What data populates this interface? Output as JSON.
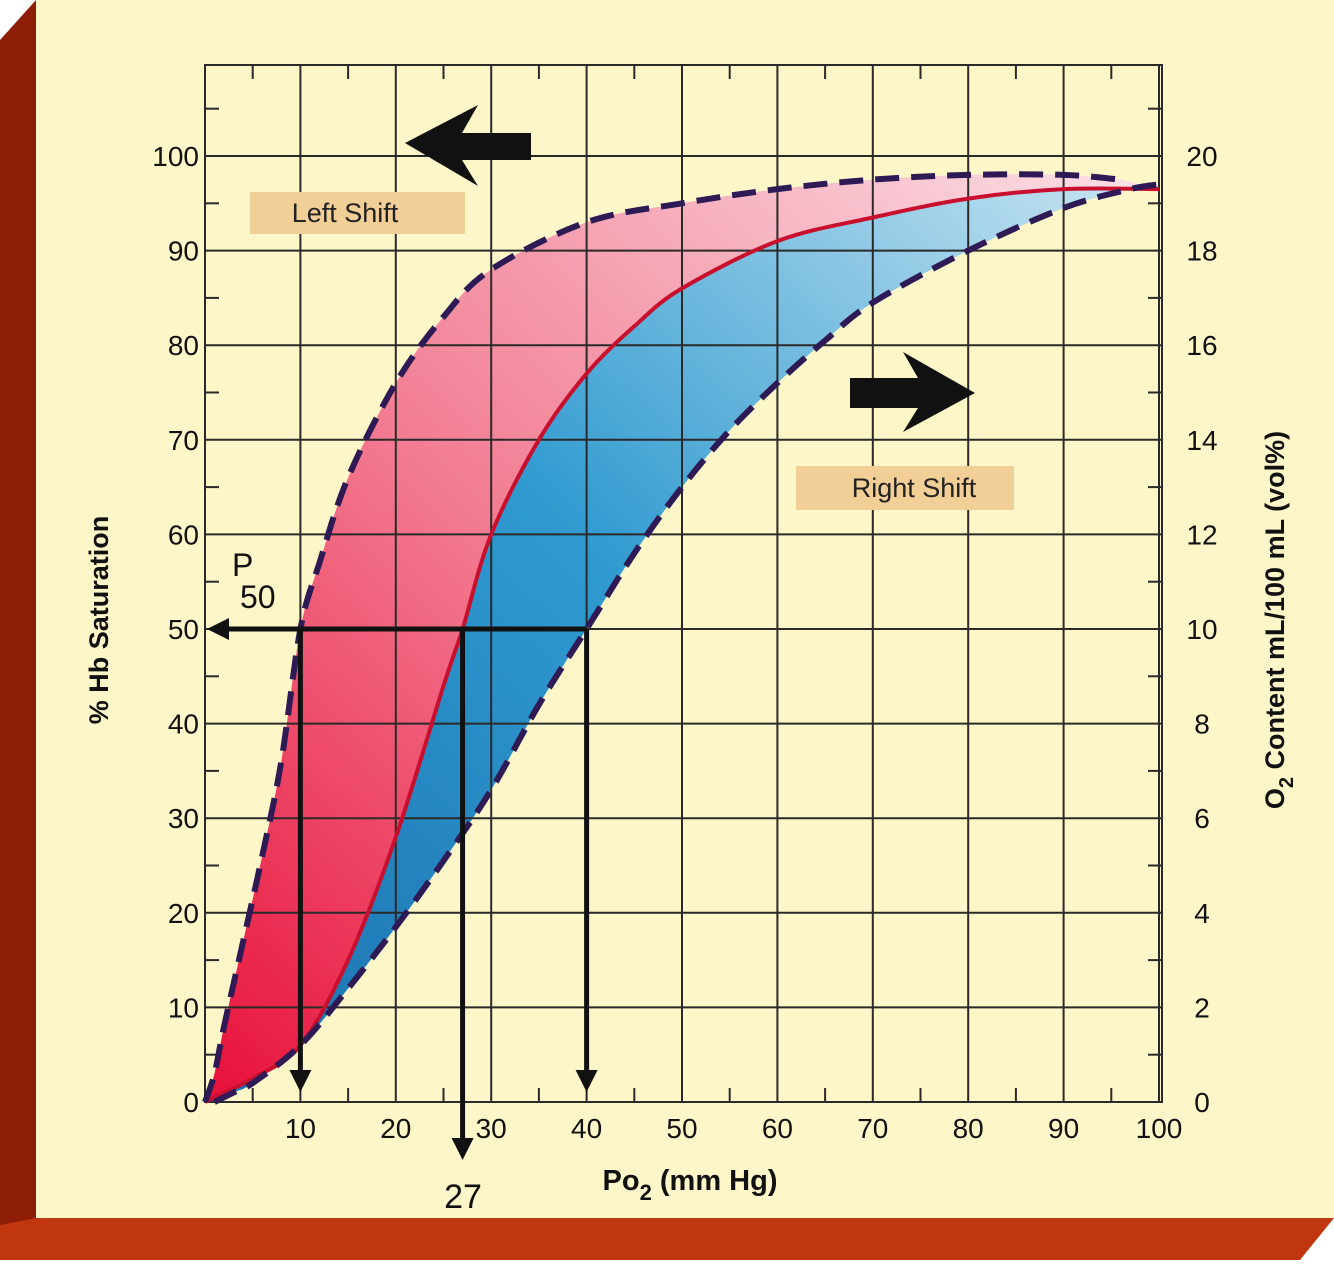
{
  "colors": {
    "panel": "#fcf6c8",
    "frame_front": "#c0360e",
    "frame_side": "#8e1e08",
    "grid": "#2a2a2a",
    "left_fill": "#f0647e",
    "right_fill": "#2f8cc4",
    "normal_curve": "#c8102e",
    "shift_curves": "#2e1a55",
    "label_box": "#f3cf98",
    "arrows": "#111111"
  },
  "chart_data": {
    "type": "line",
    "title": "",
    "xlabel": "Po",
    "xlabel_sub": "2",
    "xlabel_unit": " (mm Hg)",
    "ylabel": "% Hb Saturation",
    "y2label": "O",
    "y2label_sub": "2",
    "y2label_rest": " Content mL/100 mL (vol%)",
    "xlim": [
      0,
      100
    ],
    "ylim": [
      0,
      100
    ],
    "y2lim": [
      0,
      20
    ],
    "x_ticks": [
      10,
      20,
      30,
      40,
      50,
      60,
      70,
      80,
      90,
      100
    ],
    "y_ticks": [
      0,
      10,
      20,
      30,
      40,
      50,
      60,
      70,
      80,
      90,
      100
    ],
    "y2_ticks": [
      0,
      2,
      4,
      6,
      8,
      10,
      12,
      14,
      16,
      18,
      20
    ],
    "grid": true,
    "series": [
      {
        "key": "left",
        "style": "dashed",
        "points": [
          [
            0,
            0
          ],
          [
            1,
            3
          ],
          [
            2,
            8
          ],
          [
            4,
            17
          ],
          [
            6,
            26
          ],
          [
            8,
            36
          ],
          [
            10,
            50
          ],
          [
            12,
            57
          ],
          [
            15,
            66
          ],
          [
            20,
            76
          ],
          [
            25,
            83
          ],
          [
            30,
            88
          ],
          [
            40,
            93
          ],
          [
            50,
            95
          ],
          [
            60,
            96.5
          ],
          [
            70,
            97.5
          ],
          [
            80,
            98
          ],
          [
            90,
            98
          ],
          [
            96,
            97.5
          ]
        ]
      },
      {
        "key": "normal",
        "style": "solid",
        "points": [
          [
            0,
            0
          ],
          [
            2,
            1
          ],
          [
            5,
            2.5
          ],
          [
            10,
            6
          ],
          [
            15,
            15
          ],
          [
            20,
            28
          ],
          [
            25,
            44
          ],
          [
            27,
            50
          ],
          [
            30,
            60
          ],
          [
            35,
            70
          ],
          [
            40,
            77
          ],
          [
            45,
            82
          ],
          [
            50,
            86
          ],
          [
            60,
            91
          ],
          [
            70,
            93.5
          ],
          [
            80,
            95.5
          ],
          [
            90,
            96.5
          ],
          [
            100,
            96.5
          ]
        ]
      },
      {
        "key": "right",
        "style": "dashed",
        "points": [
          [
            1,
            0
          ],
          [
            3,
            1
          ],
          [
            5,
            2
          ],
          [
            10,
            6
          ],
          [
            15,
            12
          ],
          [
            20,
            18.5
          ],
          [
            25,
            25.5
          ],
          [
            30,
            33
          ],
          [
            35,
            42
          ],
          [
            40,
            50
          ],
          [
            45,
            58
          ],
          [
            50,
            65
          ],
          [
            55,
            71
          ],
          [
            60,
            76
          ],
          [
            65,
            80.5
          ],
          [
            70,
            84.5
          ],
          [
            80,
            90
          ],
          [
            90,
            94.5
          ],
          [
            97,
            96.5
          ],
          [
            100,
            97
          ]
        ]
      }
    ],
    "p50": {
      "label": "P",
      "label_sub": "50",
      "y": 50,
      "drops": [
        10,
        27,
        40
      ],
      "callout": "27",
      "callout_x": 27
    },
    "annotations": {
      "left_shift": "Left Shift",
      "right_shift": "Right Shift"
    }
  }
}
